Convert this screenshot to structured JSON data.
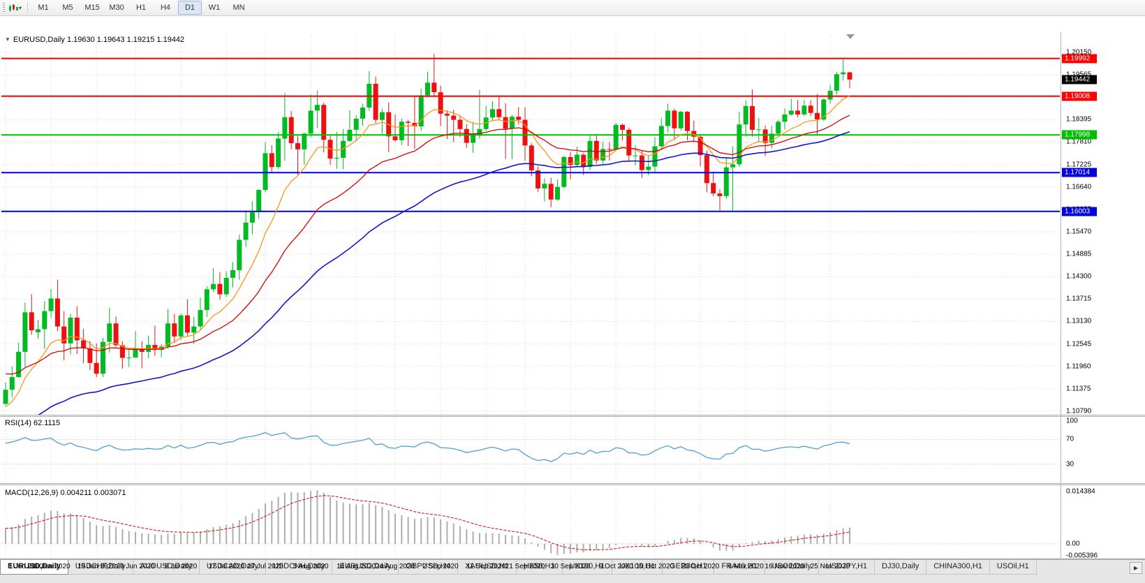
{
  "toolbar": {
    "caret": "▾",
    "timeframes": [
      "M1",
      "M5",
      "M15",
      "M30",
      "H1",
      "H4",
      "D1",
      "W1",
      "MN"
    ],
    "active": "D1"
  },
  "chart": {
    "title": {
      "collapse_icon": "▼",
      "symbol_period": "EURUSD,Daily",
      "ohlc": "1.19630 1.19643 1.19215 1.19442"
    }
  },
  "chart_data": {
    "type": "candlestick",
    "symbol": "EURUSD",
    "timeframe": "Daily",
    "colors": {
      "bull": "#00BB22",
      "bear": "#EE1111",
      "grid": "#DBDBDB",
      "rsi": "#4E9FD4",
      "macd_hist": "#ADADAD",
      "macd_signal": "#E00000",
      "hline_red": "#FF0000",
      "hline_green": "#00BE00",
      "hline_blue": "#0000DD",
      "current_badge": "#000000"
    },
    "price_axis": {
      "max": 1.2015,
      "min": 1.1079,
      "ticks": [
        "1.20150",
        "1.19565",
        "1.18980",
        "1.18395",
        "1.17810",
        "1.17225",
        "1.16640",
        "1.16055",
        "1.15470",
        "1.14885",
        "1.14300",
        "1.13715",
        "1.13130",
        "1.12545",
        "1.11960",
        "1.11375",
        "1.10790"
      ]
    },
    "current_price": {
      "label": "1.19442",
      "price": 1.19442
    },
    "h_lines": [
      {
        "price": 1.19992,
        "label": "1.19992",
        "color": "#FF0000"
      },
      {
        "price": 1.19008,
        "label": "1.19008",
        "color": "#FF0000"
      },
      {
        "price": 1.17998,
        "label": "1.17998",
        "color": "#00BE00"
      },
      {
        "price": 1.17014,
        "label": "1.17014",
        "color": "#0000DD"
      },
      {
        "price": 1.16003,
        "label": "1.16003",
        "color": "#0000DD"
      }
    ],
    "date_ticks": [
      [
        "1 Jun 2020",
        0
      ],
      [
        "10 Jun 2020",
        7
      ],
      [
        "19 Jun 2020",
        14
      ],
      [
        "29 Jun 2020",
        20
      ],
      [
        "8 Jul 2020",
        27
      ],
      [
        "17 Jul 2020",
        34
      ],
      [
        "27 Jul 2020",
        40
      ],
      [
        "5 Aug 2020",
        47
      ],
      [
        "14 Aug 2020",
        54
      ],
      [
        "24 Aug 2020",
        60
      ],
      [
        "2 Sep 2020",
        67
      ],
      [
        "11 Sep 2020",
        74
      ],
      [
        "21 Sep 2020",
        80
      ],
      [
        "30 Sep 2020",
        87
      ],
      [
        "9 Oct 2020",
        94
      ],
      [
        "19 Oct 2020",
        100
      ],
      [
        "28 Oct 2020",
        107
      ],
      [
        "6 Nov 2020",
        114
      ],
      [
        "16 Nov 2020",
        120
      ],
      [
        "25 Nov 2020",
        127
      ]
    ],
    "indicators": {
      "ma": [
        {
          "period": 10,
          "seed": 1.108,
          "color": "#FF9416",
          "width": 1.3
        },
        {
          "period": 25,
          "seed": 1.118,
          "color": "#DD0000",
          "width": 1.3
        },
        {
          "period": 50,
          "seed": 1.102,
          "color": "#1414CC",
          "width": 1.6
        }
      ],
      "rsi": {
        "label": "RSI(14) 62.1115",
        "period": 14,
        "levels": [
          70,
          30
        ],
        "axis_labels": [
          "100",
          "70",
          "30"
        ]
      },
      "macd": {
        "label": "MACD(12,26,9) 0.004211 0.003071",
        "fast": 12,
        "slow": 26,
        "signal": 9,
        "axis_labels": [
          "0.014384",
          "0.00",
          "-0.005396"
        ]
      }
    },
    "candles": [
      [
        1.1098,
        1.1154,
        1.1093,
        1.1135
      ],
      [
        1.1135,
        1.1196,
        1.1115,
        1.1168
      ],
      [
        1.1168,
        1.1258,
        1.1166,
        1.1234
      ],
      [
        1.1234,
        1.1362,
        1.1195,
        1.1337
      ],
      [
        1.1337,
        1.1384,
        1.1278,
        1.129
      ],
      [
        1.1285,
        1.1317,
        1.1268,
        1.1293
      ],
      [
        1.1293,
        1.1366,
        1.1241,
        1.134
      ],
      [
        1.134,
        1.1398,
        1.1322,
        1.1373
      ],
      [
        1.1373,
        1.1422,
        1.1288,
        1.13
      ],
      [
        1.13,
        1.134,
        1.1212,
        1.1256
      ],
      [
        1.1256,
        1.1333,
        1.1227,
        1.1323
      ],
      [
        1.1323,
        1.1353,
        1.1228,
        1.1264
      ],
      [
        1.1264,
        1.1294,
        1.1204,
        1.1243
      ],
      [
        1.1243,
        1.1262,
        1.1186,
        1.1205
      ],
      [
        1.1205,
        1.1256,
        1.1168,
        1.1177
      ],
      [
        1.1177,
        1.127,
        1.1168,
        1.126
      ],
      [
        1.126,
        1.1349,
        1.1232,
        1.1308
      ],
      [
        1.1308,
        1.1326,
        1.1248,
        1.1251
      ],
      [
        1.1251,
        1.1261,
        1.119,
        1.1218
      ],
      [
        1.1218,
        1.124,
        1.1194,
        1.1219
      ],
      [
        1.1219,
        1.1288,
        1.1218,
        1.1242
      ],
      [
        1.1242,
        1.1262,
        1.1191,
        1.1234
      ],
      [
        1.1234,
        1.1276,
        1.1217,
        1.1252
      ],
      [
        1.1252,
        1.1302,
        1.1224,
        1.1239
      ],
      [
        1.1239,
        1.1254,
        1.1219,
        1.1248
      ],
      [
        1.1248,
        1.1346,
        1.1242,
        1.1308
      ],
      [
        1.1308,
        1.1333,
        1.1259,
        1.1274
      ],
      [
        1.1274,
        1.1334,
        1.1265,
        1.1329
      ],
      [
        1.1329,
        1.1371,
        1.1275,
        1.1284
      ],
      [
        1.1284,
        1.1325,
        1.1254,
        1.13
      ],
      [
        1.13,
        1.1375,
        1.1292,
        1.1343
      ],
      [
        1.1343,
        1.1405,
        1.1325,
        1.1397
      ],
      [
        1.1397,
        1.1452,
        1.139,
        1.1411
      ],
      [
        1.1411,
        1.1442,
        1.137,
        1.1384
      ],
      [
        1.1384,
        1.1444,
        1.1377,
        1.1427
      ],
      [
        1.1427,
        1.1468,
        1.1402,
        1.1447
      ],
      [
        1.1447,
        1.154,
        1.1422,
        1.1526
      ],
      [
        1.1526,
        1.1601,
        1.1507,
        1.1571
      ],
      [
        1.1571,
        1.1627,
        1.154,
        1.1598
      ],
      [
        1.1598,
        1.1658,
        1.1581,
        1.1656
      ],
      [
        1.1656,
        1.1781,
        1.165,
        1.1752
      ],
      [
        1.1752,
        1.1773,
        1.17,
        1.1716
      ],
      [
        1.1716,
        1.1807,
        1.1711,
        1.179
      ],
      [
        1.179,
        1.1909,
        1.1732,
        1.1846
      ],
      [
        1.1846,
        1.1862,
        1.1762,
        1.1778
      ],
      [
        1.1778,
        1.1797,
        1.1696,
        1.1762
      ],
      [
        1.1762,
        1.1806,
        1.1722,
        1.1803
      ],
      [
        1.1803,
        1.1905,
        1.1793,
        1.1863
      ],
      [
        1.1863,
        1.1916,
        1.1818,
        1.1878
      ],
      [
        1.1878,
        1.1884,
        1.1754,
        1.1787
      ],
      [
        1.1787,
        1.1798,
        1.1722,
        1.1738
      ],
      [
        1.1738,
        1.1808,
        1.1711,
        1.174
      ],
      [
        1.174,
        1.1815,
        1.171,
        1.1784
      ],
      [
        1.1784,
        1.1864,
        1.1781,
        1.1813
      ],
      [
        1.1813,
        1.1851,
        1.1783,
        1.1842
      ],
      [
        1.1842,
        1.1881,
        1.1823,
        1.1871
      ],
      [
        1.1871,
        1.1966,
        1.1863,
        1.1933
      ],
      [
        1.1933,
        1.1952,
        1.183,
        1.1839
      ],
      [
        1.1839,
        1.1868,
        1.1803,
        1.1859
      ],
      [
        1.1859,
        1.1884,
        1.1755,
        1.1796
      ],
      [
        1.1796,
        1.1853,
        1.1782,
        1.1786
      ],
      [
        1.1786,
        1.1843,
        1.1773,
        1.1834
      ],
      [
        1.1834,
        1.1839,
        1.1771,
        1.1831
      ],
      [
        1.1831,
        1.1902,
        1.1763,
        1.1822
      ],
      [
        1.1822,
        1.192,
        1.181,
        1.1903
      ],
      [
        1.1903,
        1.1965,
        1.1898,
        1.1936
      ],
      [
        1.1936,
        1.2011,
        1.1901,
        1.1911
      ],
      [
        1.1911,
        1.1928,
        1.1823,
        1.1855
      ],
      [
        1.1855,
        1.1864,
        1.1789,
        1.185
      ],
      [
        1.185,
        1.1865,
        1.1781,
        1.1839
      ],
      [
        1.1839,
        1.1849,
        1.1794,
        1.1815
      ],
      [
        1.1815,
        1.1828,
        1.1766,
        1.1779
      ],
      [
        1.1779,
        1.1834,
        1.1753,
        1.1801
      ],
      [
        1.1801,
        1.1917,
        1.179,
        1.1815
      ],
      [
        1.1815,
        1.1875,
        1.181,
        1.1845
      ],
      [
        1.1845,
        1.1888,
        1.1836,
        1.1867
      ],
      [
        1.1867,
        1.1899,
        1.1838,
        1.1846
      ],
      [
        1.1846,
        1.1882,
        1.1737,
        1.1816
      ],
      [
        1.1816,
        1.1852,
        1.1736,
        1.1847
      ],
      [
        1.1847,
        1.1872,
        1.1827,
        1.1839
      ],
      [
        1.1839,
        1.1872,
        1.1732,
        1.1772
      ],
      [
        1.1772,
        1.1778,
        1.1692,
        1.1707
      ],
      [
        1.1707,
        1.1718,
        1.1651,
        1.166
      ],
      [
        1.166,
        1.1686,
        1.1626,
        1.1672
      ],
      [
        1.1672,
        1.1688,
        1.1611,
        1.1631
      ],
      [
        1.1631,
        1.1683,
        1.1628,
        1.1664
      ],
      [
        1.1664,
        1.1745,
        1.1661,
        1.1742
      ],
      [
        1.1742,
        1.1755,
        1.1684,
        1.1721
      ],
      [
        1.1721,
        1.1769,
        1.1717,
        1.1748
      ],
      [
        1.1748,
        1.1752,
        1.1695,
        1.1716
      ],
      [
        1.1716,
        1.1798,
        1.1708,
        1.1784
      ],
      [
        1.1784,
        1.1798,
        1.1724,
        1.1733
      ],
      [
        1.1733,
        1.1782,
        1.1724,
        1.1763
      ],
      [
        1.1763,
        1.1781,
        1.1733,
        1.1761
      ],
      [
        1.1761,
        1.1831,
        1.1758,
        1.1826
      ],
      [
        1.1826,
        1.1829,
        1.1785,
        1.1813
      ],
      [
        1.1813,
        1.1818,
        1.1731,
        1.1746
      ],
      [
        1.1746,
        1.1772,
        1.172,
        1.1746
      ],
      [
        1.1746,
        1.1758,
        1.1688,
        1.1708
      ],
      [
        1.1708,
        1.1747,
        1.1694,
        1.1717
      ],
      [
        1.1717,
        1.1794,
        1.1703,
        1.177
      ],
      [
        1.177,
        1.1844,
        1.1761,
        1.1823
      ],
      [
        1.1823,
        1.1881,
        1.1806,
        1.1863
      ],
      [
        1.1863,
        1.1868,
        1.1786,
        1.1817
      ],
      [
        1.1817,
        1.1863,
        1.1811,
        1.186
      ],
      [
        1.186,
        1.1862,
        1.1786,
        1.181
      ],
      [
        1.181,
        1.1837,
        1.1781,
        1.1795
      ],
      [
        1.1795,
        1.18,
        1.1718,
        1.1747
      ],
      [
        1.1747,
        1.1759,
        1.165,
        1.1674
      ],
      [
        1.1674,
        1.1704,
        1.164,
        1.1647
      ],
      [
        1.1647,
        1.1658,
        1.1603,
        1.164
      ],
      [
        1.164,
        1.174,
        1.1633,
        1.1715
      ],
      [
        1.1715,
        1.177,
        1.1602,
        1.1723
      ],
      [
        1.1723,
        1.186,
        1.1716,
        1.1827
      ],
      [
        1.1827,
        1.189,
        1.1795,
        1.1875
      ],
      [
        1.1875,
        1.1918,
        1.1795,
        1.1813
      ],
      [
        1.1813,
        1.1844,
        1.178,
        1.1814
      ],
      [
        1.1814,
        1.1824,
        1.1745,
        1.1779
      ],
      [
        1.1779,
        1.1823,
        1.1765,
        1.1803
      ],
      [
        1.1803,
        1.1839,
        1.1799,
        1.1834
      ],
      [
        1.1834,
        1.1869,
        1.1814,
        1.1853
      ],
      [
        1.1853,
        1.1894,
        1.185,
        1.1863
      ],
      [
        1.1863,
        1.1891,
        1.1845,
        1.1853
      ],
      [
        1.1853,
        1.1891,
        1.1849,
        1.1876
      ],
      [
        1.1876,
        1.189,
        1.1849,
        1.1857
      ],
      [
        1.1857,
        1.1906,
        1.18,
        1.184
      ],
      [
        1.184,
        1.1895,
        1.1836,
        1.1892
      ],
      [
        1.1892,
        1.193,
        1.1881,
        1.1915
      ],
      [
        1.1915,
        1.1964,
        1.1905,
        1.1958
      ],
      [
        1.1958,
        1.19992,
        1.1941,
        1.1963
      ],
      [
        1.1963,
        1.19643,
        1.19215,
        1.19442
      ]
    ]
  },
  "tabs": {
    "scroll_right_label": "▶",
    "items": [
      {
        "label": "EURUSD,Daily",
        "active": true
      },
      {
        "label": "USDCHF,Daily",
        "active": false
      },
      {
        "label": "AUDUSD,Daily",
        "active": false
      },
      {
        "label": "USDCAD,Daily",
        "active": false
      },
      {
        "label": "USDCNH,Daily",
        "active": false
      },
      {
        "label": "EURUSD,Daily",
        "active": false
      },
      {
        "label": "GBPUSD,H4",
        "active": false
      },
      {
        "label": "XAUUSD,H1",
        "active": false
      },
      {
        "label": "HK50,H1",
        "active": false
      },
      {
        "label": "UK100,H1",
        "active": false
      },
      {
        "label": "UK100,H1",
        "active": false
      },
      {
        "label": "GER30,H1",
        "active": false
      },
      {
        "label": "FRA40,H1",
        "active": false
      },
      {
        "label": "USOil,Daily",
        "active": false
      },
      {
        "label": "USDJPY,H1",
        "active": false
      },
      {
        "label": "DJ30,Daily",
        "active": false
      },
      {
        "label": "CHINA300,H1",
        "active": false
      },
      {
        "label": "USOil,H1",
        "active": false
      }
    ]
  }
}
